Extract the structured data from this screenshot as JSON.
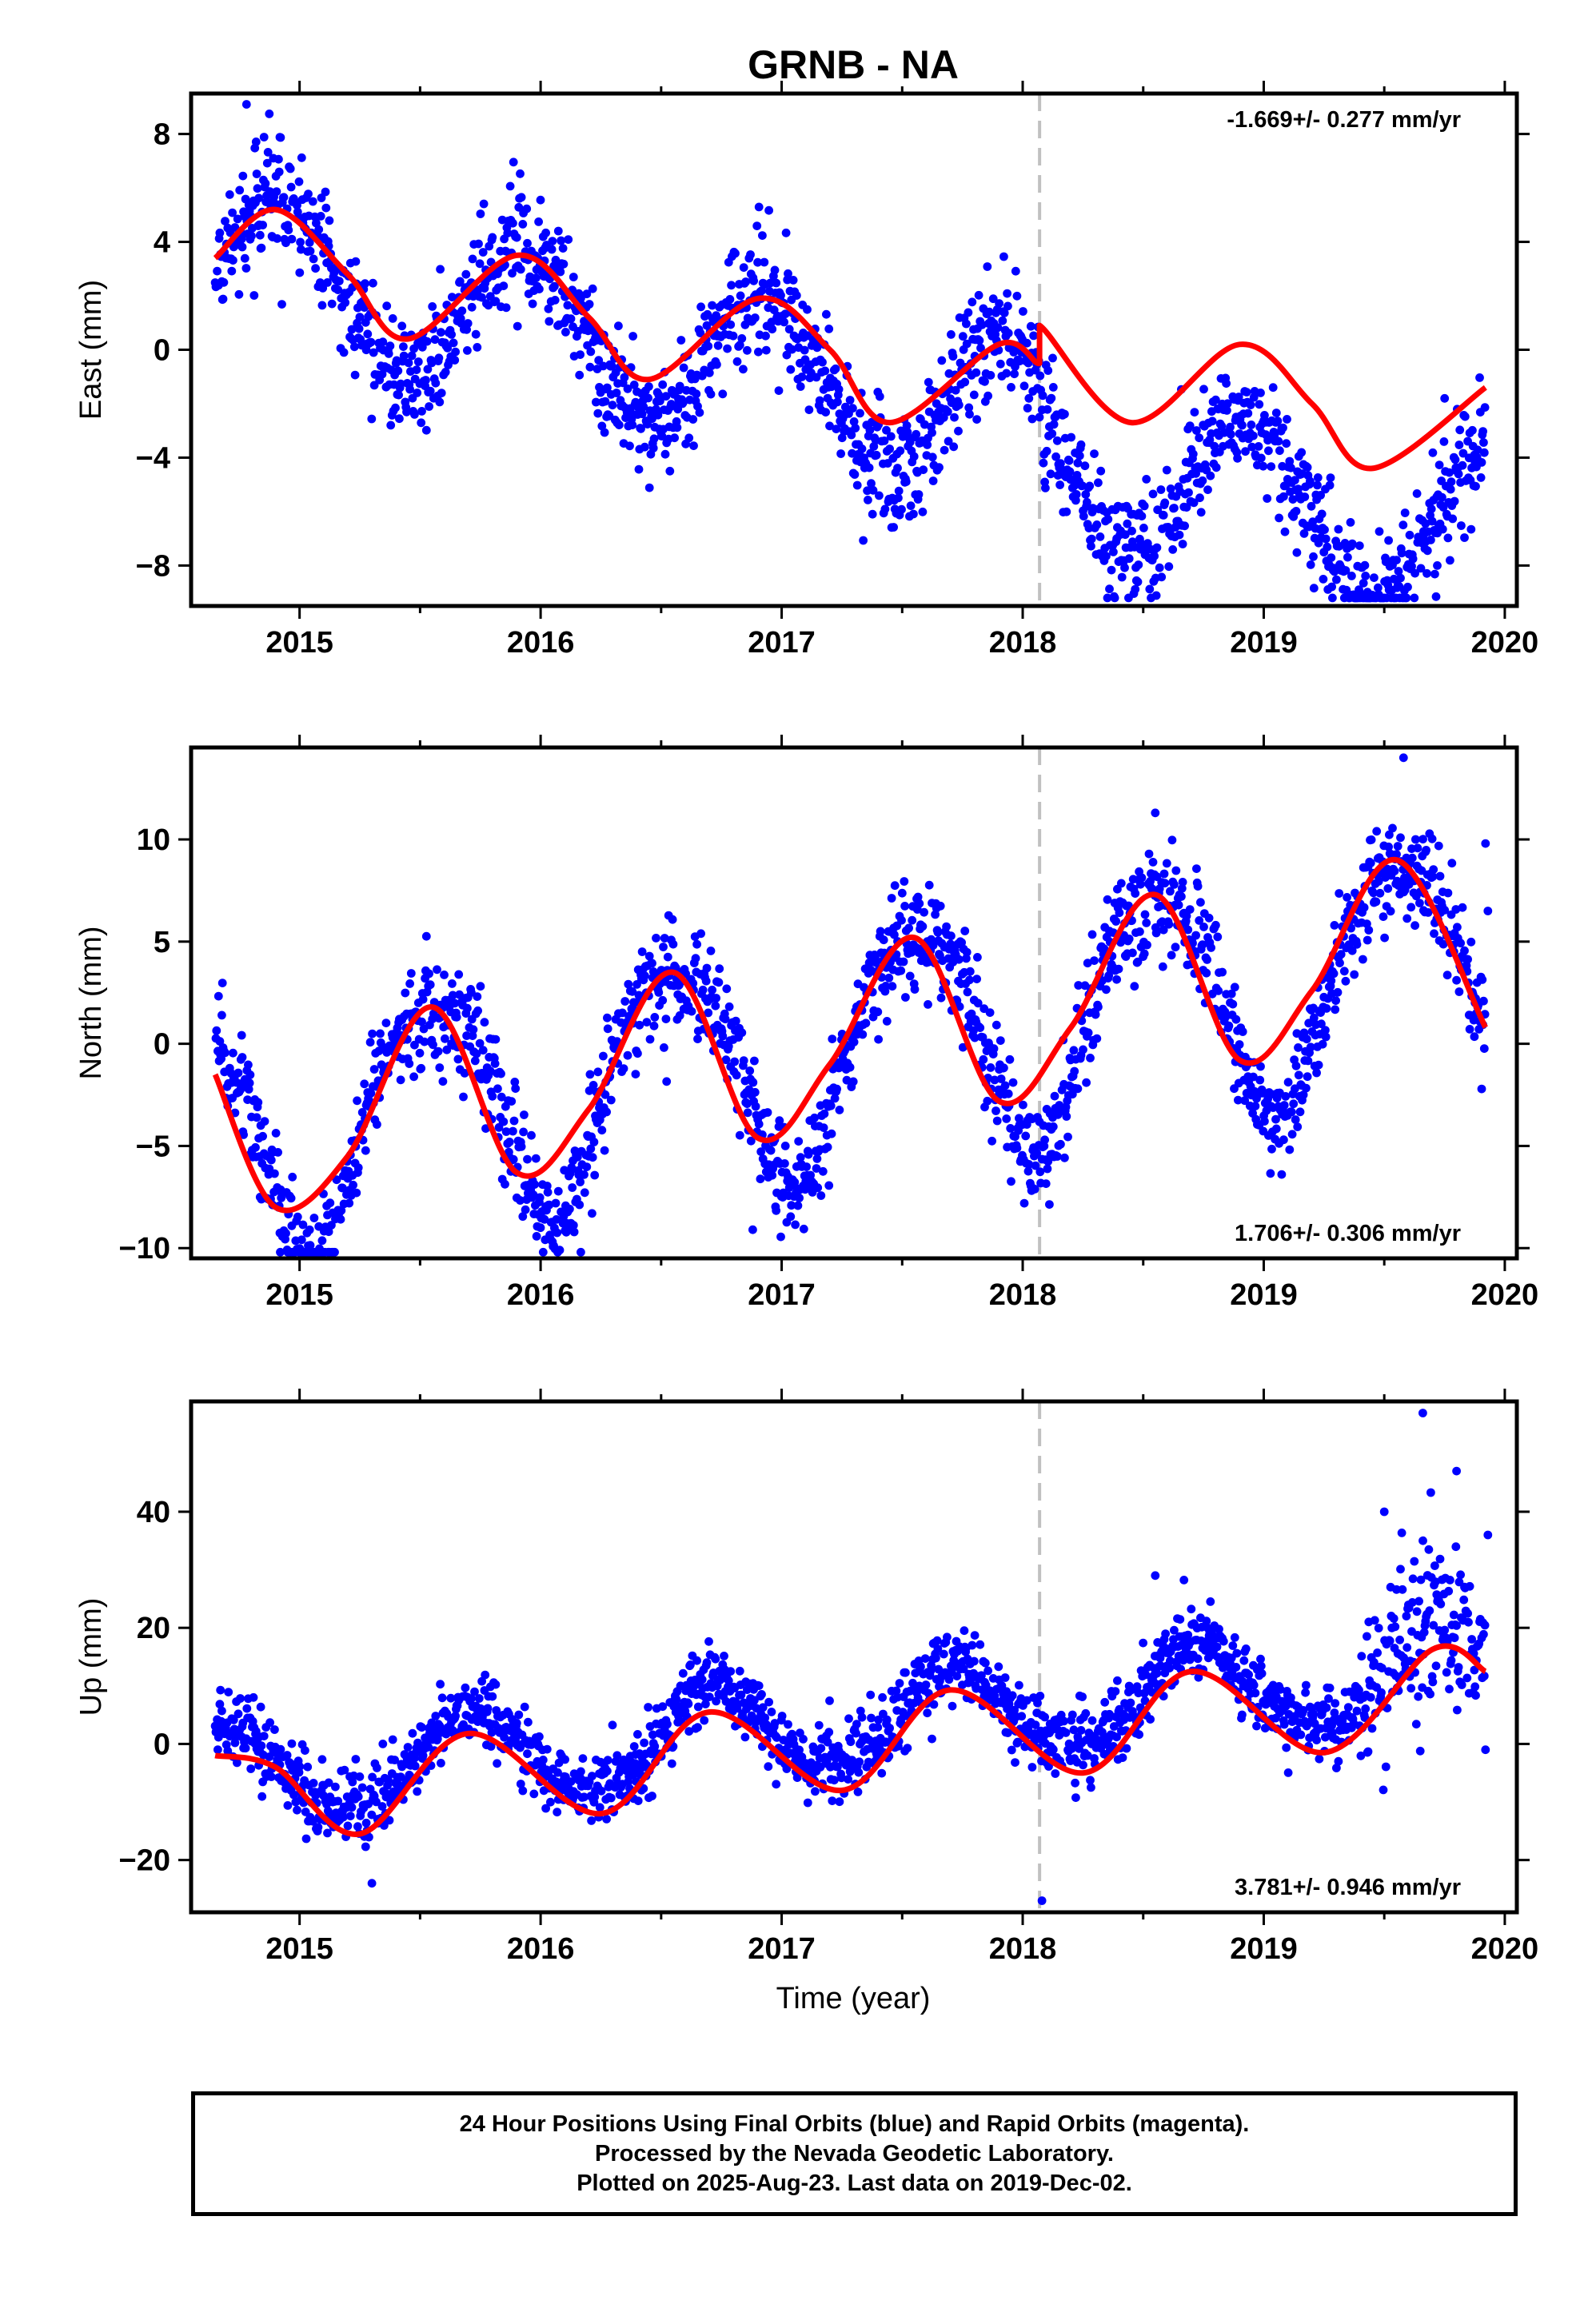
{
  "title": "GRNB - NA",
  "xlabel": "Time (year)",
  "colors": {
    "final_orbits": "#0000ff",
    "model": "#ff0000",
    "break_line": "#c0c0c0",
    "frame": "#000000"
  },
  "footer": {
    "line1": "24 Hour Positions Using Final Orbits (blue) and Rapid Orbits (magenta).",
    "line2": "Processed by the Nevada Geodetic Laboratory.",
    "line3": "Plotted on 2025-Aug-23. Last data on 2019-Dec-02."
  },
  "chart_data": [
    {
      "type": "scatter",
      "component": "East",
      "ylabel": "East (mm)",
      "rate_text": "-1.669+/- 0.277 mm/yr",
      "rate_position": "top-right",
      "xlim": [
        2014.55,
        2020.05
      ],
      "ylim": [
        -9.5,
        9.5
      ],
      "xticks": [
        2015,
        2016,
        2017,
        2018,
        2019,
        2020
      ],
      "yticks": [
        8,
        4,
        0,
        -4,
        -8
      ],
      "ytick_labels": [
        "8",
        "4",
        "0",
        "−4",
        "−8"
      ],
      "grid": false,
      "break_year": 2018.07,
      "model": {
        "offset": 3.1,
        "slope": -1.669,
        "annual_amp": 2.9,
        "annual_peak": 0.93,
        "semi_amp": 0.2,
        "semi_peak": 0.3,
        "break_step": -1.4,
        "noise": 1.1
      },
      "data_range": [
        2014.65,
        2019.92
      ],
      "outliers": [
        [
          2014.78,
          9.1
        ],
        [
          2019.52,
          -8.9
        ],
        [
          2019.54,
          -8.5
        ],
        [
          2019.72,
          -8.0
        ],
        [
          2019.36,
          -6.4
        ],
        [
          2018.45,
          -6.1
        ]
      ],
      "model_points": [
        [
          2014.65,
          3.4
        ],
        [
          2014.9,
          5.2
        ],
        [
          2015.2,
          2.8
        ],
        [
          2015.45,
          0.4
        ],
        [
          2015.9,
          3.5
        ],
        [
          2016.2,
          1.2
        ],
        [
          2016.45,
          -1.1
        ],
        [
          2016.9,
          1.9
        ],
        [
          2017.2,
          0.0
        ],
        [
          2017.45,
          -2.7
        ],
        [
          2017.9,
          0.2
        ],
        [
          2018.07,
          -0.5
        ],
        [
          2018.07,
          0.9
        ],
        [
          2018.45,
          -2.7
        ],
        [
          2018.9,
          0.2
        ],
        [
          2019.2,
          -2.0
        ],
        [
          2019.45,
          -4.4
        ],
        [
          2019.92,
          -1.4
        ]
      ]
    },
    {
      "type": "scatter",
      "component": "North",
      "ylabel": "North (mm)",
      "rate_text": "1.706+/- 0.306 mm/yr",
      "rate_position": "bottom-right",
      "xlim": [
        2014.55,
        2020.05
      ],
      "ylim": [
        -10.5,
        14.5
      ],
      "xticks": [
        2015,
        2016,
        2017,
        2018,
        2019,
        2020
      ],
      "yticks": [
        10,
        5,
        0,
        -5,
        -10
      ],
      "ytick_labels": [
        "10",
        "5",
        "0",
        "−5",
        "−10"
      ],
      "grid": false,
      "break_year": 2018.07,
      "model": {
        "offset": -4.7,
        "slope": 1.706,
        "annual_amp": 5.6,
        "annual_peak": 0.55,
        "semi_amp": 0.9,
        "semi_peak": 0.3,
        "break_step": 0.0,
        "noise": 1.3
      },
      "data_range": [
        2014.65,
        2019.92
      ],
      "outliers": [
        [
          2014.92,
          -10.2
        ],
        [
          2016.88,
          -9.1
        ],
        [
          2019.58,
          14.0
        ],
        [
          2019.92,
          9.8
        ],
        [
          2018.55,
          11.3
        ],
        [
          2019.93,
          6.5
        ]
      ],
      "model_points": [
        [
          2014.65,
          -1.5
        ],
        [
          2014.9,
          -8.0
        ],
        [
          2015.2,
          -5.5
        ],
        [
          2015.55,
          1.8
        ],
        [
          2015.9,
          -6.3
        ],
        [
          2016.2,
          -3.2
        ],
        [
          2016.55,
          3.5
        ],
        [
          2016.9,
          -4.6
        ],
        [
          2017.2,
          -1.0
        ],
        [
          2017.55,
          5.2
        ],
        [
          2017.9,
          -2.8
        ],
        [
          2018.2,
          0.8
        ],
        [
          2018.55,
          7.3
        ],
        [
          2018.9,
          -0.8
        ],
        [
          2019.2,
          2.6
        ],
        [
          2019.55,
          9.0
        ],
        [
          2019.92,
          0.8
        ]
      ]
    },
    {
      "type": "scatter",
      "component": "Up",
      "ylabel": "Up (mm)",
      "rate_text": "3.781+/- 0.946 mm/yr",
      "rate_position": "bottom-right",
      "xlim": [
        2014.55,
        2020.05
      ],
      "ylim": [
        -29,
        59
      ],
      "xticks": [
        2015,
        2016,
        2017,
        2018,
        2019,
        2020
      ],
      "yticks": [
        40,
        20,
        0,
        -20
      ],
      "ytick_labels": [
        "40",
        "20",
        "0",
        "−20"
      ],
      "grid": false,
      "break_year": 2018.07,
      "model": {
        "offset": -6.5,
        "slope": 3.781,
        "annual_amp": 8.0,
        "annual_peak": 0.72,
        "semi_amp": 1.2,
        "semi_peak": 0.2,
        "break_step": 0.0,
        "noise": 3.2
      },
      "data_range": [
        2014.65,
        2019.92
      ],
      "outliers": [
        [
          2019.66,
          57.0
        ],
        [
          2019.8,
          47.0
        ],
        [
          2019.5,
          40.0
        ],
        [
          2019.93,
          36.0
        ],
        [
          2018.08,
          -27.0
        ],
        [
          2015.3,
          -24.0
        ],
        [
          2018.55,
          29.0
        ],
        [
          2019.92,
          -1.0
        ]
      ],
      "model_points": [
        [
          2014.65,
          -2.0
        ],
        [
          2014.9,
          -4.0
        ],
        [
          2015.25,
          -15.5
        ],
        [
          2015.7,
          1.8
        ],
        [
          2016.25,
          -12.0
        ],
        [
          2016.7,
          5.5
        ],
        [
          2017.25,
          -8.0
        ],
        [
          2017.7,
          9.3
        ],
        [
          2018.25,
          -5.0
        ],
        [
          2018.7,
          12.5
        ],
        [
          2019.25,
          -1.5
        ],
        [
          2019.7,
          16.3
        ],
        [
          2019.92,
          12.5
        ]
      ]
    }
  ]
}
